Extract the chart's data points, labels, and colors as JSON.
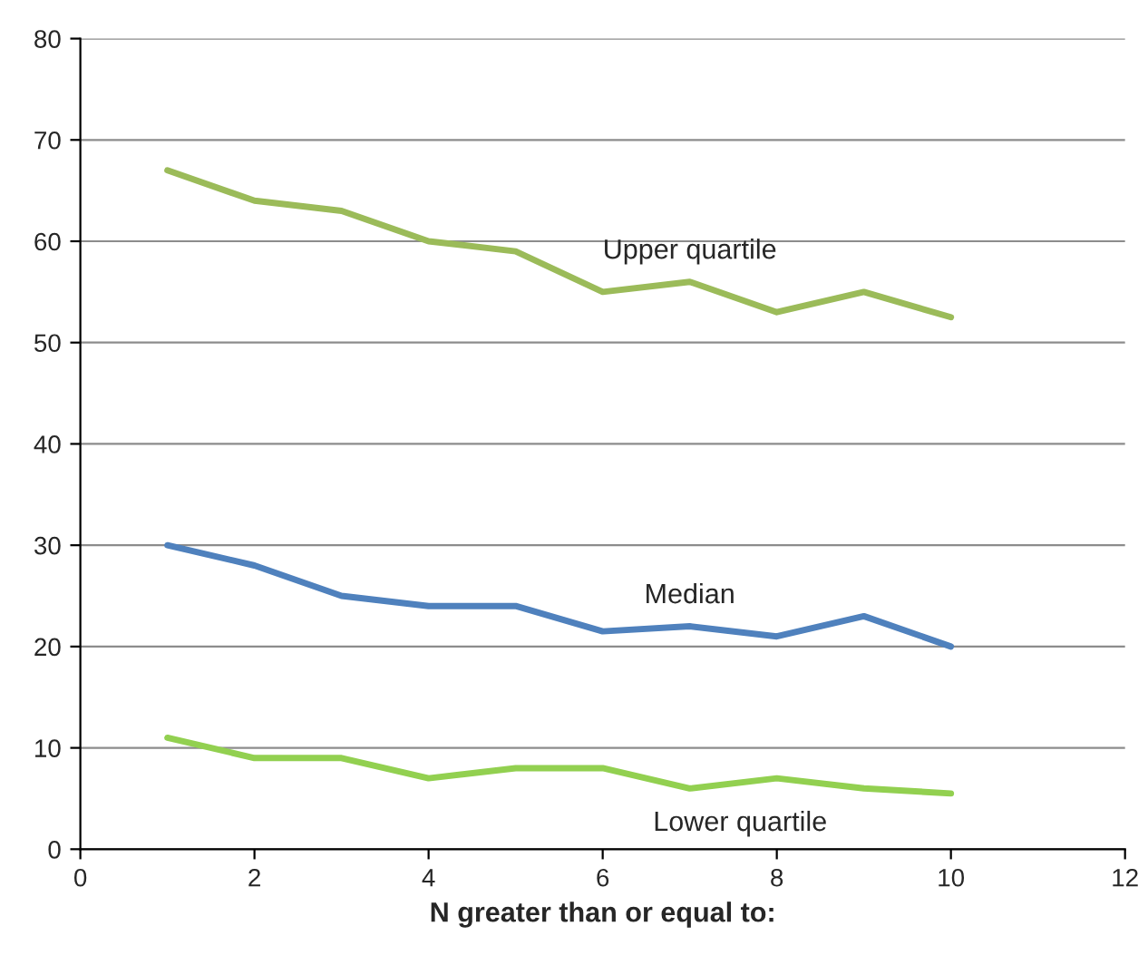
{
  "chart_data": {
    "type": "line",
    "xlabel": "N greater than or equal to:",
    "x": [
      1,
      2,
      3,
      4,
      5,
      6,
      7,
      8,
      9,
      10
    ],
    "series": [
      {
        "name": "Upper quartile",
        "color": "#9bbb59",
        "values": [
          67,
          64,
          63,
          60,
          59,
          55,
          56,
          53,
          55,
          52.5
        ]
      },
      {
        "name": "Median",
        "color": "#4f81bd",
        "values": [
          30,
          28,
          25,
          24,
          24,
          21.5,
          22,
          21,
          23,
          20
        ]
      },
      {
        "name": "Lower quartile",
        "color": "#92d050",
        "values": [
          11,
          9,
          9,
          7,
          8,
          8,
          6,
          7,
          6,
          5.5
        ]
      }
    ],
    "xlim": [
      0,
      12
    ],
    "xticks": [
      0,
      2,
      4,
      6,
      8,
      10,
      12
    ],
    "ylim": [
      0,
      80
    ],
    "yticks": [
      0,
      10,
      20,
      30,
      40,
      50,
      60,
      70,
      80
    ],
    "grid": "y",
    "legend": false,
    "marker": "none",
    "line_style": "solid"
  }
}
